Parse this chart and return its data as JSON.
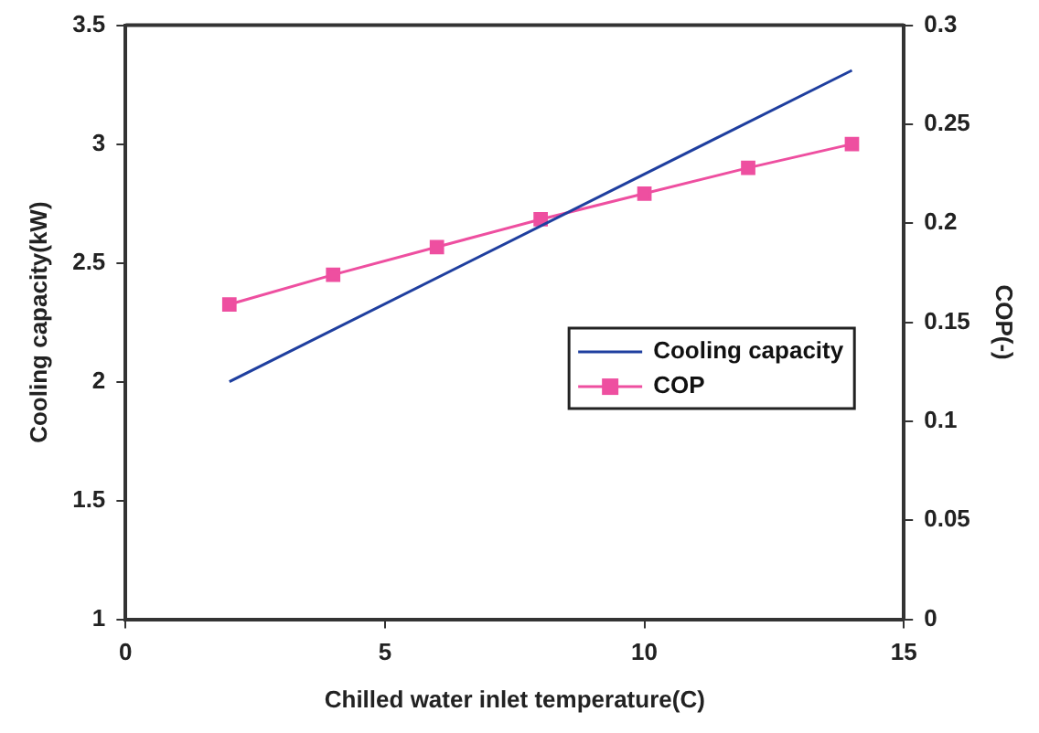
{
  "chart_data": {
    "type": "line",
    "xlabel": "Chilled water inlet temperature(C)",
    "ylabel": "Cooling capacity(kW)",
    "y2label": "COP(-)",
    "xlim": [
      0,
      15
    ],
    "xticks": [
      0,
      5,
      10,
      15
    ],
    "ylim": [
      1,
      3.5
    ],
    "yticks": [
      1,
      1.5,
      2,
      2.5,
      3,
      3.5
    ],
    "y2lim": [
      0,
      0.3
    ],
    "y2ticks": [
      0,
      0.05,
      0.1,
      0.15,
      0.2,
      0.25,
      0.3
    ],
    "grid": false,
    "legend": "right",
    "series": [
      {
        "name": "Cooling capacity",
        "color": "#1f3f9f",
        "marker": "none",
        "x": [
          2,
          14
        ],
        "values": [
          2.0,
          3.31
        ]
      },
      {
        "name": "COP",
        "color": "#ee4fa0",
        "marker": "square",
        "axis": "y2",
        "x": [
          2,
          4,
          6,
          8,
          10,
          12,
          14
        ],
        "values": [
          0.159,
          0.174,
          0.188,
          0.202,
          0.215,
          0.228,
          0.24
        ]
      }
    ]
  }
}
